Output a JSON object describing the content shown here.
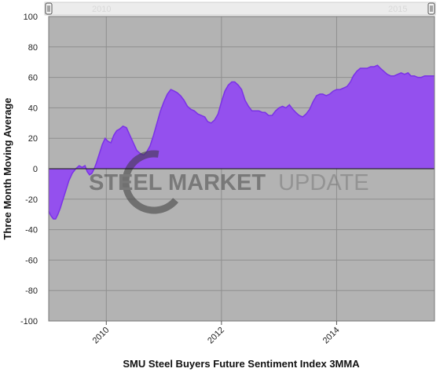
{
  "chart_data": {
    "type": "area",
    "title": "",
    "xlabel": "SMU Steel Buyers Future Sentiment Index 3MMA",
    "ylabel": "Three Month Moving Average",
    "xlim": [
      2009.0,
      2015.7
    ],
    "ylim": [
      -100,
      100
    ],
    "x_ticks": [
      2010,
      2012,
      2014
    ],
    "x_tick_labels": [
      "2010",
      "2012",
      "2014"
    ],
    "y_ticks": [
      100,
      80,
      60,
      40,
      20,
      0,
      -20,
      -40,
      -60,
      -80,
      -100
    ],
    "grid": true,
    "legend": "none",
    "series": [
      {
        "color": "#8a3cf0",
        "x": [
          2009.0,
          2009.04,
          2009.08,
          2009.12,
          2009.16,
          2009.2,
          2009.25,
          2009.3,
          2009.35,
          2009.41,
          2009.47,
          2009.53,
          2009.58,
          2009.63,
          2009.67,
          2009.71,
          2009.75,
          2009.79,
          2009.83,
          2009.88,
          2009.93,
          2009.98,
          2010.03,
          2010.08,
          2010.13,
          2010.18,
          2010.23,
          2010.29,
          2010.35,
          2010.41,
          2010.47,
          2010.53,
          2010.59,
          2010.65,
          2010.7,
          2010.76,
          2010.82,
          2010.88,
          2010.94,
          2011.0,
          2011.06,
          2011.12,
          2011.18,
          2011.23,
          2011.29,
          2011.35,
          2011.41,
          2011.47,
          2011.53,
          2011.59,
          2011.65,
          2011.71,
          2011.76,
          2011.82,
          2011.88,
          2011.94,
          2012.0,
          2012.06,
          2012.12,
          2012.18,
          2012.23,
          2012.29,
          2012.35,
          2012.41,
          2012.47,
          2012.53,
          2012.59,
          2012.65,
          2012.71,
          2012.76,
          2012.82,
          2012.88,
          2012.94,
          2013.0,
          2013.06,
          2013.12,
          2013.18,
          2013.24,
          2013.29,
          2013.35,
          2013.41,
          2013.47,
          2013.53,
          2013.59,
          2013.65,
          2013.71,
          2013.76,
          2013.82,
          2013.88,
          2013.94,
          2014.0,
          2014.06,
          2014.12,
          2014.18,
          2014.24,
          2014.29,
          2014.35,
          2014.41,
          2014.47,
          2014.53,
          2014.59,
          2014.65,
          2014.71,
          2014.76,
          2014.82,
          2014.88,
          2014.94,
          2015.0,
          2015.06,
          2015.12,
          2015.18,
          2015.24,
          2015.29,
          2015.35,
          2015.41,
          2015.47,
          2015.53,
          2015.59,
          2015.65,
          2015.7
        ],
        "y": [
          -28,
          -31,
          -33,
          -33,
          -30,
          -26,
          -20,
          -14,
          -8,
          -3,
          0,
          2,
          1,
          2,
          -2,
          -4,
          -3,
          0,
          4,
          10,
          16,
          20,
          18,
          17,
          22,
          25,
          26,
          28,
          27,
          22,
          17,
          12,
          10,
          9,
          11,
          15,
          22,
          30,
          38,
          44,
          49,
          52,
          51,
          50,
          48,
          45,
          41,
          39,
          38,
          36,
          35,
          34,
          31,
          30,
          32,
          36,
          44,
          51,
          55,
          57,
          57,
          55,
          52,
          45,
          41,
          38,
          38,
          38,
          37,
          37,
          35,
          35,
          38,
          40,
          41,
          40,
          42,
          39,
          37,
          35,
          34,
          36,
          39,
          44,
          48,
          49,
          49,
          48,
          49,
          51,
          52,
          52,
          53,
          54,
          57,
          61,
          64,
          66,
          66,
          66,
          67,
          67,
          68,
          66,
          64,
          62,
          61,
          61,
          62,
          63,
          62,
          63,
          61,
          61,
          60,
          60,
          61,
          61,
          61,
          61
        ]
      }
    ]
  },
  "navigator": {
    "left_label": "2010",
    "right_label": "2015",
    "left_handle_icon": "slider-handle-left-icon",
    "right_handle_icon": "slider-handle-right-icon"
  },
  "watermark": {
    "part1": "STEEL MARKET",
    "part2": "UPDATE"
  },
  "colors": {
    "plot_bg": "#b3b3b3",
    "area_fill": "#9450ee",
    "area_line": "#7a32e6",
    "grid": "#8f8f8f",
    "zero_line": "#111111",
    "navigator_bg": "#ececec"
  }
}
